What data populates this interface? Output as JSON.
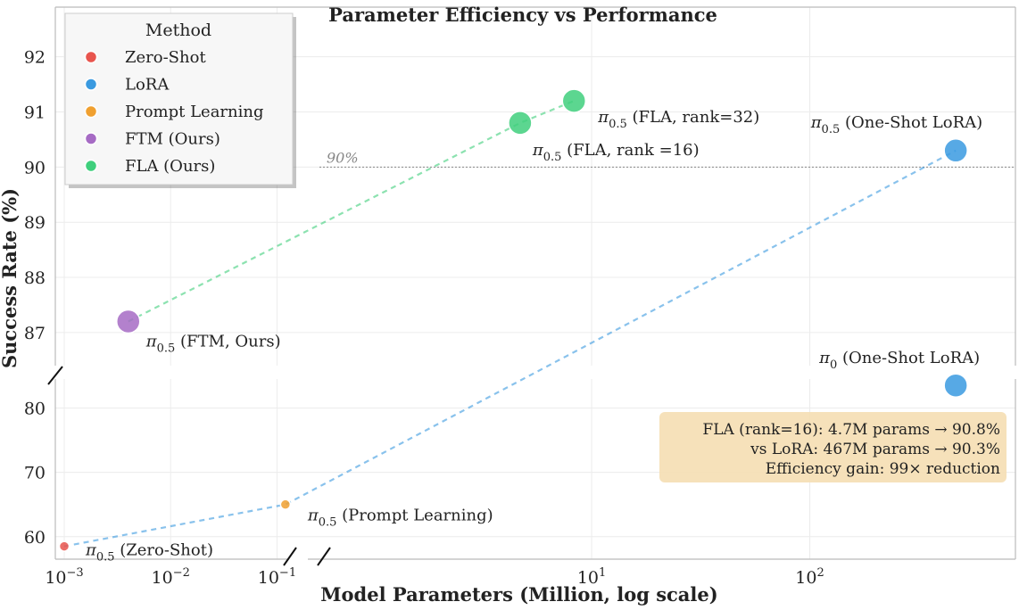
{
  "chart_data": {
    "type": "scatter",
    "title": "Parameter Efficiency vs Performance",
    "xlabel": "Model Parameters (Million, log scale)",
    "ylabel": "Success Rate (%)",
    "x_scale": "log (broken between 10^-1 and 10^0)",
    "x_ticks": [
      {
        "base": "10",
        "exp": "−3",
        "value": 0.001
      },
      {
        "base": "10",
        "exp": "−2",
        "value": 0.01
      },
      {
        "base": "10",
        "exp": "−1",
        "value": 0.1
      },
      {
        "base": "10",
        "exp": "1",
        "value": 10
      },
      {
        "base": "10",
        "exp": "2",
        "value": 100
      }
    ],
    "upper_ylim": [
      86.4,
      92.9
    ],
    "lower_ylim": [
      56.5,
      84.5
    ],
    "upper_yticks": [
      "87",
      "88",
      "89",
      "90",
      "91",
      "92"
    ],
    "lower_yticks": [
      "60",
      "70",
      "80"
    ],
    "reference_line": {
      "y": 90,
      "label": "90%"
    },
    "legend": {
      "title": "Method",
      "position": "top-left",
      "entries": [
        {
          "label": "Zero-Shot",
          "color": "#e8554e"
        },
        {
          "label": "LoRA",
          "color": "#3a9ae0"
        },
        {
          "label": "Prompt Learning",
          "color": "#f0a030"
        },
        {
          "label": "FTM (Ours)",
          "color": "#a66bc4"
        },
        {
          "label": "FLA (Ours)",
          "color": "#3fcf7c"
        }
      ]
    },
    "points": [
      {
        "id": "zero-shot",
        "method": "Zero-Shot",
        "x": 0.001,
        "y": 58.5,
        "color": "#e8554e",
        "size": "small",
        "label": {
          "sym": "π",
          "sub": "0.5",
          "text": " (Zero-Shot)"
        }
      },
      {
        "id": "prompt",
        "method": "Prompt Learning",
        "x": 0.12,
        "y": 65.0,
        "color": "#f0a030",
        "size": "small",
        "label": {
          "sym": "π",
          "sub": "0.5",
          "text": " (Prompt Learning)"
        }
      },
      {
        "id": "ftm",
        "method": "FTM (Ours)",
        "x": 0.004,
        "y": 87.2,
        "color": "#a66bc4",
        "size": "large",
        "label": {
          "sym": "π",
          "sub": "0.5",
          "text": " (FTM, Ours)"
        }
      },
      {
        "id": "fla16",
        "method": "FLA (Ours)",
        "x": 4.7,
        "y": 90.8,
        "color": "#3fcf7c",
        "size": "large",
        "label": {
          "sym": "π",
          "sub": "0.5",
          "text": " (FLA, rank =16)"
        }
      },
      {
        "id": "fla32",
        "method": "FLA (Ours)",
        "x": 8.3,
        "y": 91.2,
        "color": "#3fcf7c",
        "size": "large",
        "label": {
          "sym": "π",
          "sub": "0.5",
          "text": " (FLA, rank=32)"
        }
      },
      {
        "id": "lora05",
        "method": "LoRA",
        "x": 467,
        "y": 90.3,
        "color": "#3a9ae0",
        "size": "large",
        "label": {
          "sym": "π",
          "sub": "0.5",
          "text": " (One-Shot LoRA)"
        }
      },
      {
        "id": "lora0",
        "method": "LoRA",
        "x": 467,
        "y": 83.5,
        "color": "#3a9ae0",
        "size": "large",
        "label": {
          "sym": "π",
          "sub": "0",
          "text": " (One-Shot LoRA)"
        }
      }
    ],
    "trend_lines": [
      {
        "color": "#3a9ae0",
        "points": [
          "zero-shot",
          "prompt",
          "lora05"
        ]
      },
      {
        "color": "#3fcf7c",
        "points": [
          "ftm",
          "fla16",
          "fla32"
        ]
      }
    ],
    "annotation_box": [
      "FLA (rank=16): 4.7M params → 90.8%",
      "vs LoRA: 467M params → 90.3%",
      "Efficiency gain: 99× reduction"
    ]
  }
}
